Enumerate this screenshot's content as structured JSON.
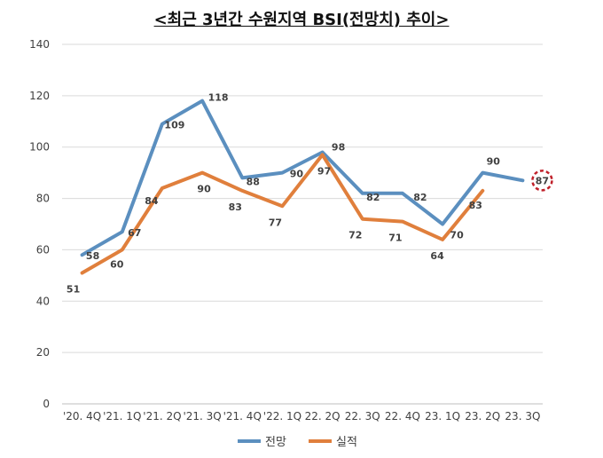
{
  "chart_data": {
    "type": "line",
    "title": "<최근 3년간 수원지역 BSI(전망치) 추이>",
    "categories": [
      "'20. 4Q",
      "'21. 1Q",
      "'21. 2Q",
      "'21. 3Q",
      "'21. 4Q",
      "'22. 1Q",
      "22. 2Q",
      "22. 3Q",
      "22. 4Q",
      "23. 1Q",
      "23. 2Q",
      "23. 3Q"
    ],
    "yticks": [
      0,
      20,
      40,
      60,
      80,
      100,
      120,
      140
    ],
    "ylim": [
      0,
      140
    ],
    "grid": true,
    "legend_position": "bottom",
    "series": [
      {
        "name": "전망",
        "color": "#5b8fbf",
        "values": [
          58,
          67,
          109,
          118,
          88,
          90,
          98,
          82,
          82,
          70,
          90,
          87
        ]
      },
      {
        "name": "실적",
        "color": "#e07f3c",
        "values": [
          51,
          60,
          84,
          90,
          83,
          77,
          97,
          72,
          71,
          64,
          83,
          null
        ]
      }
    ],
    "highlight": {
      "series": 0,
      "index": 11,
      "color": "#c0202a"
    }
  }
}
